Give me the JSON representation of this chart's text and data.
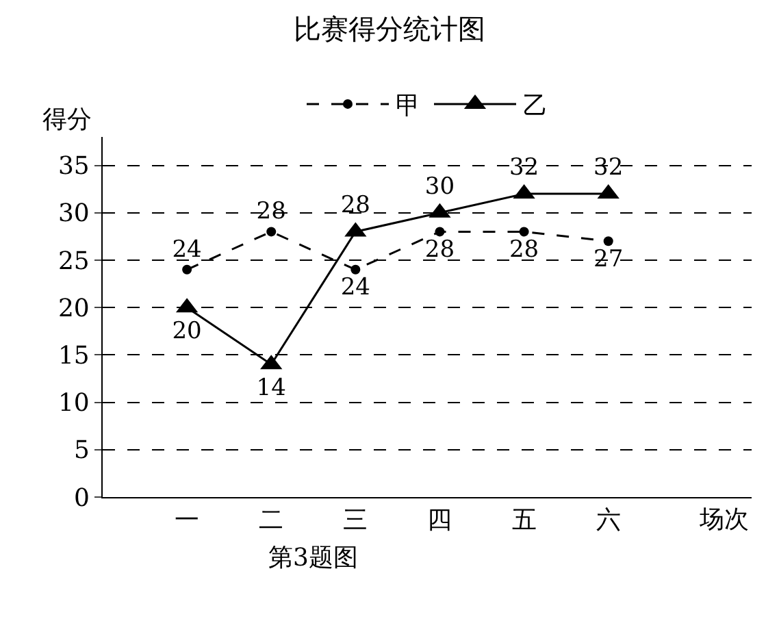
{
  "chart_data": {
    "type": "line",
    "title": "比赛得分统计图",
    "xlabel": "场次",
    "ylabel": "得分",
    "categories": [
      "一",
      "二",
      "三",
      "四",
      "五",
      "六"
    ],
    "series": [
      {
        "name": "甲",
        "color": "#000000",
        "values": [
          24,
          28,
          24,
          28,
          28,
          27
        ],
        "marker": "circle",
        "line_style": "dashed"
      },
      {
        "name": "乙",
        "color": "#000000",
        "values": [
          20,
          14,
          28,
          30,
          32,
          32
        ],
        "marker": "triangle",
        "line_style": "solid"
      }
    ],
    "ylim": [
      0,
      38
    ],
    "yticks": [
      0,
      5,
      10,
      15,
      20,
      25,
      30,
      35
    ],
    "grid": "y",
    "legend": "top",
    "data_labels": true,
    "annotations": [
      "第3题图"
    ]
  }
}
